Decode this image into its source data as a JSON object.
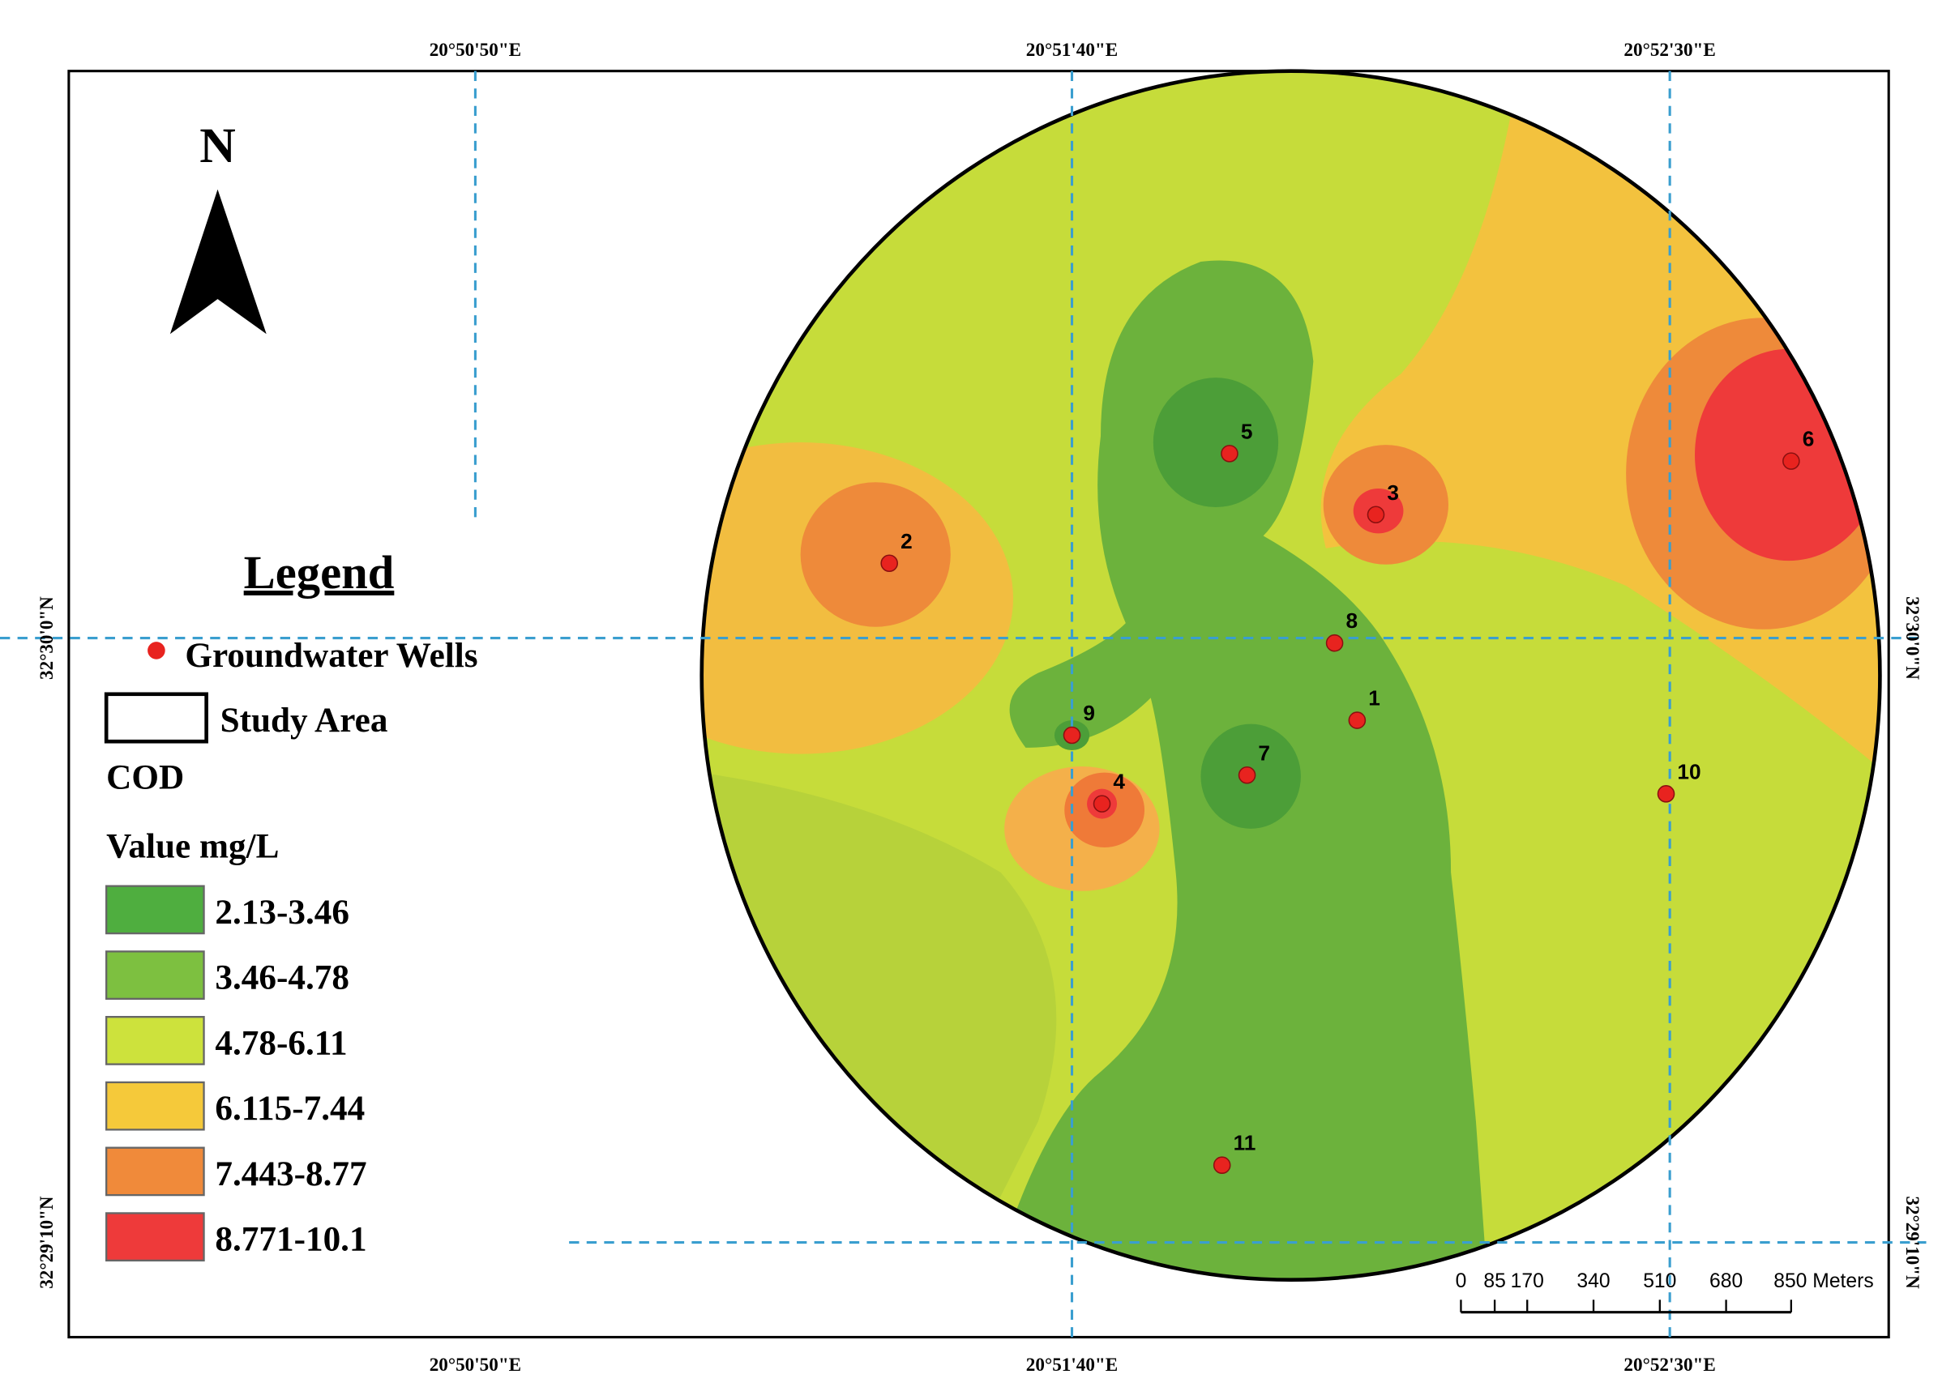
{
  "map": {
    "north": "N",
    "graticule": {
      "top": [
        "20°50'50\"E",
        "20°51'40\"E",
        "20°52'30\"E"
      ],
      "bottom": [
        "20°50'50\"E",
        "20°51'40\"E",
        "20°52'30\"E"
      ],
      "left": [
        "32°30'0\"N",
        "32°29'10\"N"
      ],
      "right": [
        "32°30'0\"N",
        "32°29'10\"N"
      ]
    },
    "legend": {
      "title": "Legend",
      "wells": "Groundwater Wells",
      "study_area": "Study Area",
      "variable": "COD",
      "unit": "Value mg/L",
      "classes": [
        {
          "label": "2.13-3.46",
          "color": "#4fae3f"
        },
        {
          "label": "3.46-4.78",
          "color": "#7dc040"
        },
        {
          "label": "4.78-6.11",
          "color": "#cde23c"
        },
        {
          "label": "6.115-7.44",
          "color": "#f5c93a"
        },
        {
          "label": "7.443-8.77",
          "color": "#f08a3a"
        },
        {
          "label": "8.771-10.1",
          "color": "#ee3a3a"
        }
      ]
    },
    "wells": [
      "1",
      "2",
      "3",
      "4",
      "5",
      "6",
      "7",
      "8",
      "9",
      "10",
      "11"
    ],
    "scale_bar": [
      "0",
      "85",
      "170",
      "340",
      "510",
      "680",
      "850 Meters"
    ]
  }
}
